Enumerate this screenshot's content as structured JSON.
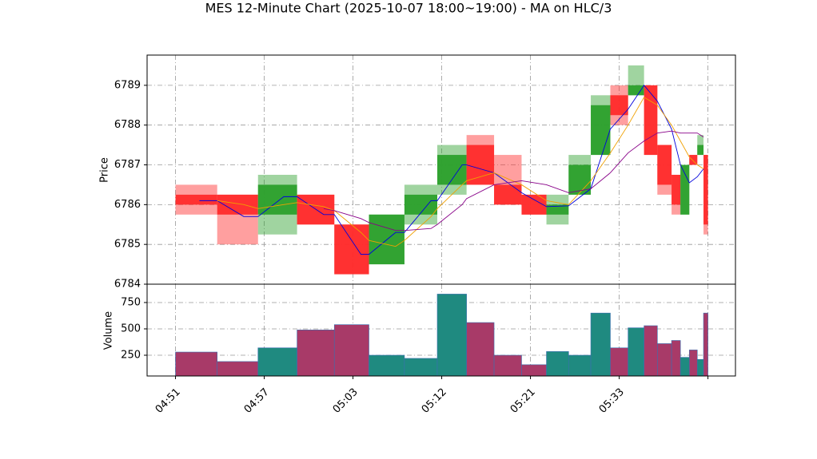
{
  "chart_data": {
    "type": "candlestick",
    "title": "MES 12-Minute Chart (2025-10-07 18:00~19:00) - MA on HLC/3",
    "ylabel": "Price",
    "volume_ylabel": "Volume",
    "xlim": [
      -3.2,
      63.1
    ],
    "xticks": [
      {
        "value": 0,
        "label": "04:51"
      },
      {
        "value": 10,
        "label": "04:57"
      },
      {
        "value": 20,
        "label": "05:03"
      },
      {
        "value": 30,
        "label": "05:12"
      },
      {
        "value": 40,
        "label": "05:21"
      },
      {
        "value": 50,
        "label": "05:33"
      },
      {
        "value": 60,
        "label": null
      }
    ],
    "ylim": [
      6784,
      6789.76
    ],
    "yticks": [
      6784,
      6785,
      6786,
      6787,
      6788,
      6789
    ],
    "volume_ylim": [
      53,
      924
    ],
    "volume_yticks": [
      250,
      500,
      750
    ],
    "grid": true,
    "up_color": "#2ca02c",
    "down_color": "#ff2b2b",
    "volume_up_color": "#1f8a80",
    "volume_down_color": "#a83a68",
    "x": [
      0.0,
      4.7,
      9.3,
      13.7,
      17.9,
      21.8,
      25.8,
      29.5,
      32.8,
      35.9,
      39.0,
      41.8,
      44.3,
      46.8,
      49.0,
      51.0,
      52.8,
      54.3,
      55.9,
      56.9,
      57.9,
      58.8,
      59.5
    ],
    "x_end": [
      4.7,
      9.3,
      13.7,
      17.9,
      21.8,
      25.8,
      29.5,
      32.8,
      35.9,
      39.0,
      41.8,
      44.3,
      46.8,
      49.0,
      51.0,
      52.8,
      54.3,
      55.9,
      56.9,
      57.9,
      58.8,
      59.5,
      60.0
    ],
    "open": [
      6786.25,
      6786.25,
      6785.75,
      6786.25,
      6785.5,
      6784.5,
      6785.75,
      6786.5,
      6787.5,
      6786.5,
      6786.25,
      6785.75,
      6786.25,
      6787.25,
      6788.75,
      6788.75,
      6789.0,
      6787.5,
      6786.75,
      6785.75,
      6787.25,
      6787.25,
      6787.25
    ],
    "high": [
      6786.5,
      6786.25,
      6786.75,
      6786.25,
      6785.5,
      6785.75,
      6786.5,
      6787.5,
      6787.75,
      6787.25,
      6786.25,
      6786.25,
      6787.25,
      6788.75,
      6789.0,
      6789.5,
      6789.0,
      6787.5,
      6786.75,
      6787.0,
      6787.25,
      6787.75,
      6787.25
    ],
    "low": [
      6785.75,
      6785.0,
      6785.25,
      6785.5,
      6784.25,
      6784.5,
      6785.5,
      6786.25,
      6786.5,
      6786.0,
      6785.75,
      6785.5,
      6786.25,
      6787.25,
      6788.0,
      6788.75,
      6787.25,
      6786.25,
      6785.75,
      6785.75,
      6787.0,
      6787.25,
      6785.25
    ],
    "close": [
      6786.0,
      6785.75,
      6786.5,
      6785.5,
      6784.25,
      6785.75,
      6786.25,
      6787.25,
      6786.5,
      6786.0,
      6785.75,
      6786.0,
      6787.0,
      6788.5,
      6788.25,
      6789.0,
      6787.25,
      6786.5,
      6786.0,
      6787.0,
      6787.0,
      6787.5,
      6785.5
    ],
    "volume": [
      280,
      190,
      320,
      490,
      540,
      250,
      220,
      830,
      560,
      250,
      160,
      285,
      250,
      650,
      320,
      510,
      530,
      360,
      390,
      230,
      300,
      210,
      650
    ],
    "ma_x": [
      2.7,
      4.7,
      7.7,
      9.3,
      12.2,
      13.7,
      16.7,
      17.9,
      20.9,
      21.8,
      24.8,
      25.8,
      28.8,
      29.5,
      32.3,
      32.8,
      35.9,
      39.0,
      41.8,
      44.3,
      46.8,
      49.0,
      51.0,
      52.8,
      54.3,
      55.9,
      56.9,
      57.9,
      58.8,
      59.5
    ],
    "ma": [
      {
        "color": "#0000dd",
        "values": [
          6786.1,
          6786.1,
          6785.7,
          6785.7,
          6786.2,
          6786.2,
          6785.75,
          6785.75,
          6784.75,
          6784.75,
          6785.3,
          6785.3,
          6786.1,
          6786.1,
          6787.0,
          6787.0,
          6786.8,
          6786.3,
          6785.95,
          6785.97,
          6786.4,
          6787.9,
          6788.4,
          6789.0,
          6788.6,
          6787.9,
          6787.0,
          6786.55,
          6786.7,
          6786.9
        ]
      },
      {
        "color": "#f0a000",
        "values": [
          null,
          6786.1,
          6786.0,
          6785.9,
          6786.0,
          6786.05,
          6785.95,
          6785.85,
          6785.3,
          6785.1,
          6784.95,
          6785.1,
          6785.7,
          6785.9,
          6786.5,
          6786.6,
          6786.8,
          6786.5,
          6786.1,
          6786.0,
          6786.6,
          6787.3,
          6788.0,
          6788.7,
          6788.5,
          6788.0,
          6787.6,
          6787.2,
          6787.0,
          6786.9
        ]
      },
      {
        "color": "#880088",
        "values": [
          null,
          null,
          null,
          null,
          null,
          null,
          6785.9,
          6785.85,
          6785.65,
          6785.55,
          6785.35,
          6785.35,
          6785.4,
          6785.5,
          6786.0,
          6786.15,
          6786.5,
          6786.6,
          6786.5,
          6786.3,
          6786.4,
          6786.8,
          6787.3,
          6787.6,
          6787.8,
          6787.85,
          6787.8,
          6787.8,
          6787.8,
          6787.7
        ]
      }
    ]
  }
}
